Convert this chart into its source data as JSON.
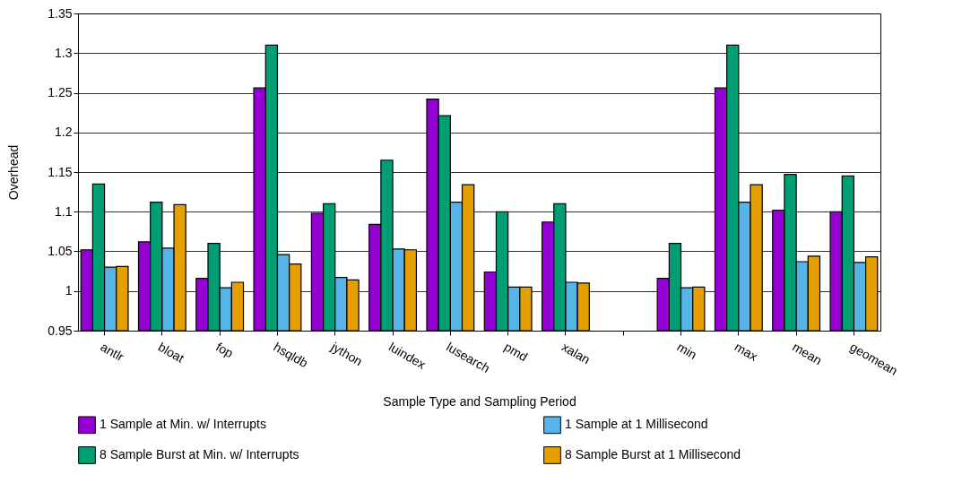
{
  "chart_data": {
    "type": "bar",
    "xlabel": "Sample Type and Sampling Period",
    "ylabel": "Overhead",
    "categories": [
      "antlr",
      "bloat",
      "fop",
      "hsqldb",
      "jython",
      "luindex",
      "lusearch",
      "pmd",
      "xalan",
      null,
      "min",
      "max",
      "mean",
      "geomean"
    ],
    "series": [
      {
        "name": "1 Sample at Min. w/ Interrupts",
        "color": "#9400d3",
        "values": [
          1.052,
          1.062,
          1.016,
          1.256,
          1.098,
          1.084,
          1.242,
          1.024,
          1.087,
          null,
          1.016,
          1.256,
          1.102,
          1.1
        ]
      },
      {
        "name": "8 Sample Burst at Min. w/ Interrupts",
        "color": "#009e73",
        "values": [
          1.135,
          1.112,
          1.06,
          1.31,
          1.11,
          1.165,
          1.221,
          1.1,
          1.11,
          null,
          1.06,
          1.31,
          1.147,
          1.145
        ]
      },
      {
        "name": "1 Sample at 1 Millisecond",
        "color": "#56b4e9",
        "values": [
          1.03,
          1.054,
          1.004,
          1.046,
          1.017,
          1.053,
          1.112,
          1.005,
          1.011,
          null,
          1.004,
          1.112,
          1.037,
          1.036
        ]
      },
      {
        "name": "8 Sample Burst at 1 Millisecond",
        "color": "#e69f00",
        "values": [
          1.031,
          1.109,
          1.011,
          1.034,
          1.014,
          1.052,
          1.134,
          1.005,
          1.01,
          null,
          1.005,
          1.134,
          1.044,
          1.043
        ]
      }
    ],
    "ylim": [
      0.95,
      1.35
    ],
    "yticks": [
      0.95,
      1,
      1.05,
      1.1,
      1.15,
      1.2,
      1.25,
      1.3,
      1.35
    ],
    "grid": "y",
    "legend": "bottom"
  }
}
